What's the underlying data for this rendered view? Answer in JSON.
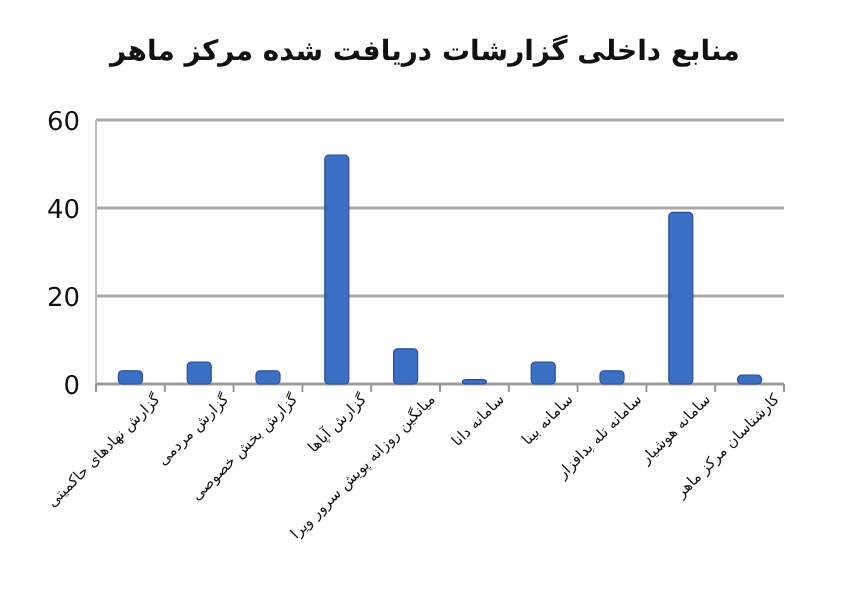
{
  "chart_data": {
    "type": "bar",
    "title": "منابع داخلی گزارشات دریافت شده مرکز ماهر",
    "categories": [
      "گزارش نهادهای حاکمیتی",
      "گزارش مردمی",
      "گزارش بخش خصوصی",
      "گزارش آپاها",
      "میانگین روزانه پویش سرور ویرا",
      "سامانه دانا",
      "سامانه بینا",
      "سامانه تله بدافزار",
      "سامانه هوشیار",
      "کارشناسان مرکز ماهر"
    ],
    "values": [
      3,
      5,
      3,
      52,
      8,
      1,
      5,
      3,
      39,
      2
    ],
    "color": "#3a6fc4",
    "ylim": [
      0,
      60
    ],
    "yticks": [
      0,
      20,
      40,
      60
    ],
    "grid": "y"
  }
}
